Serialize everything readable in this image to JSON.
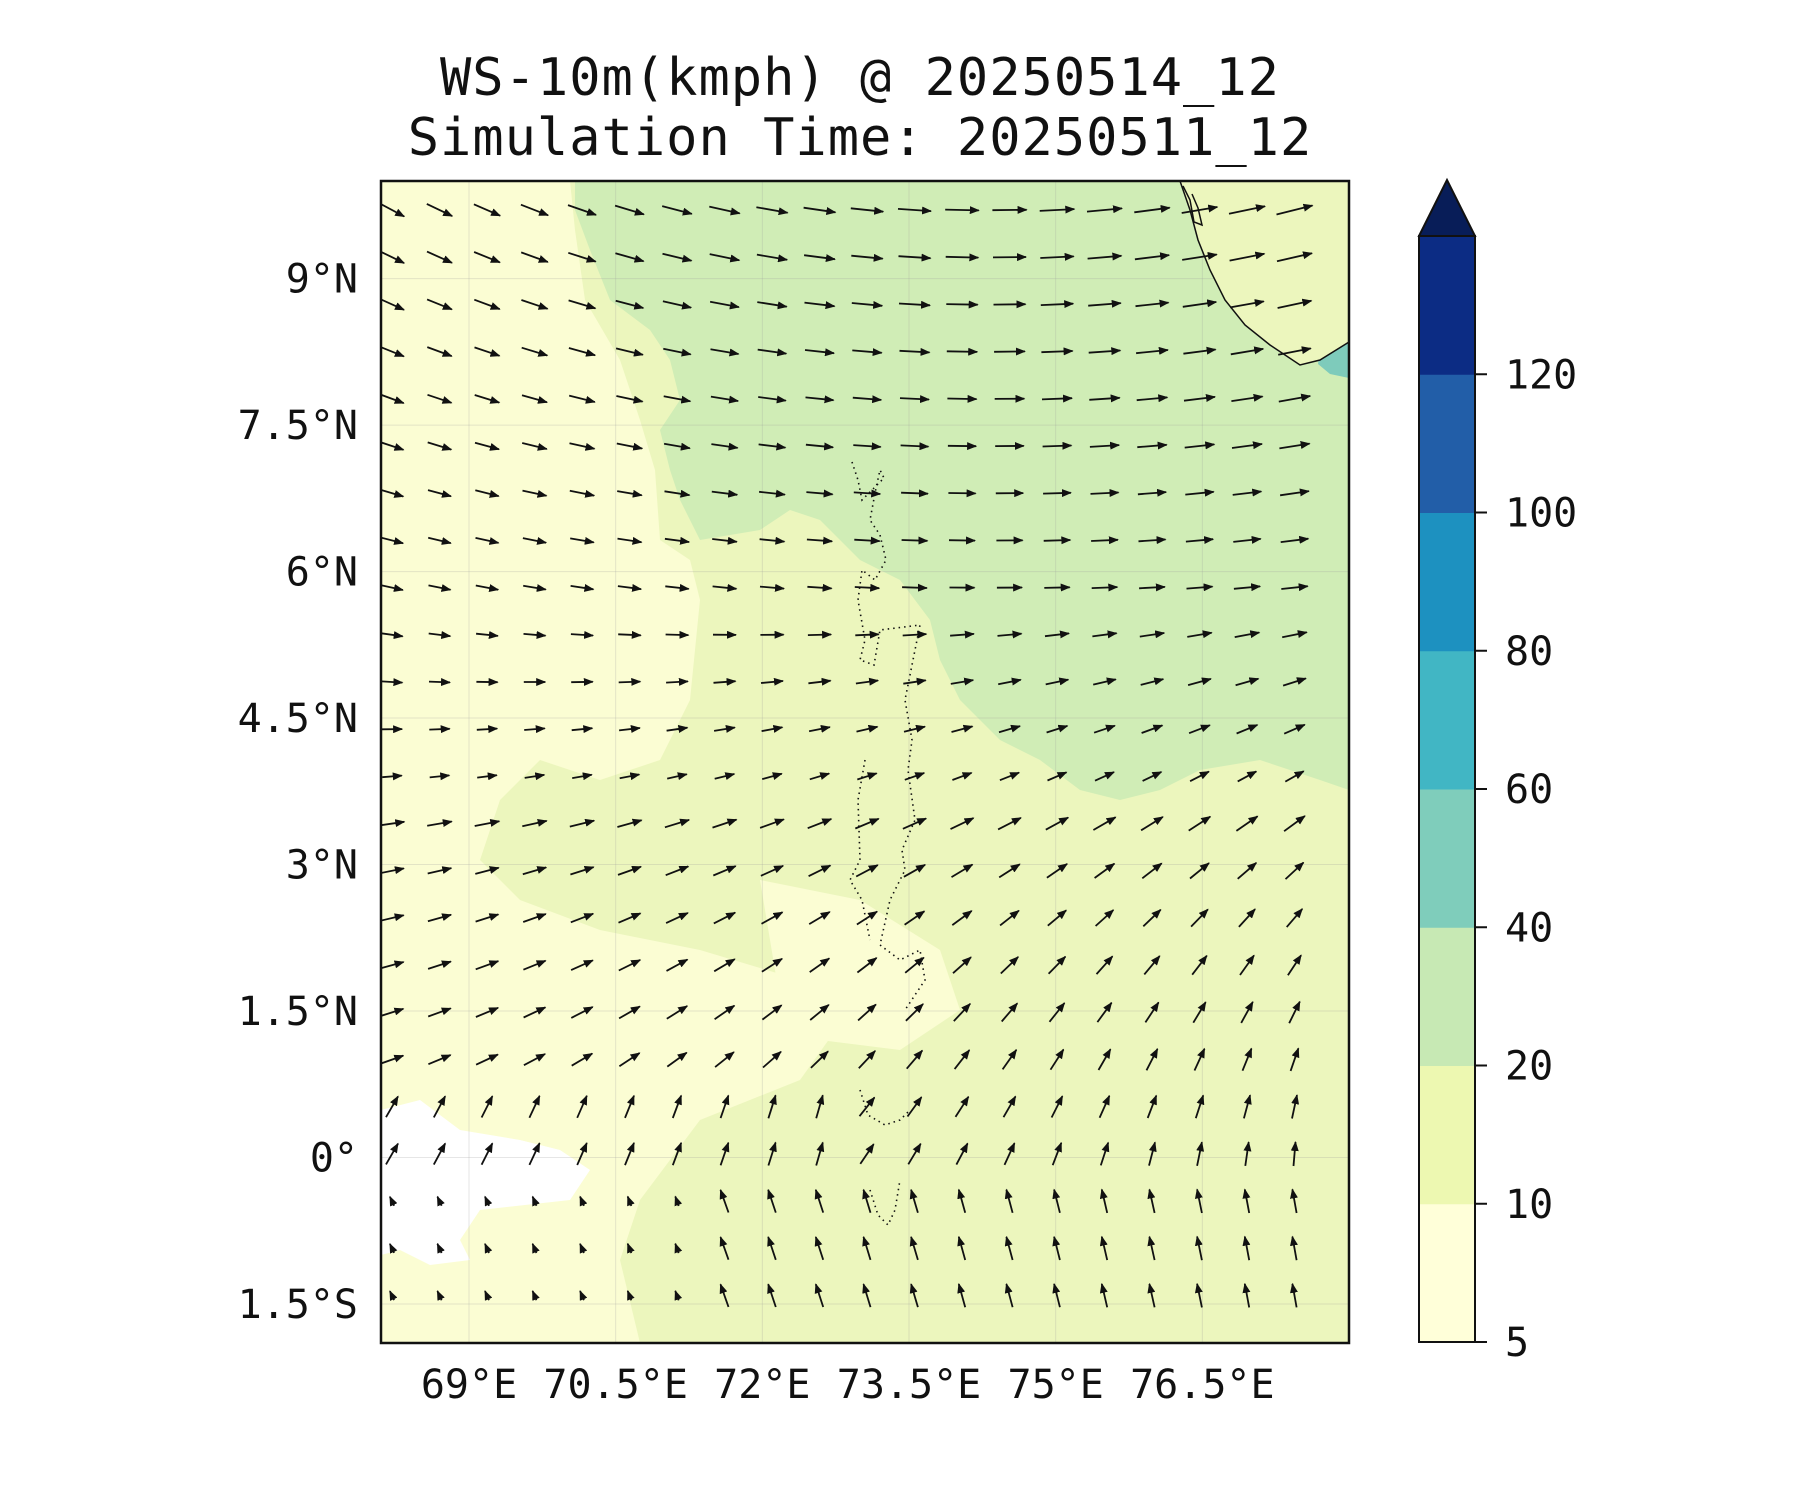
{
  "title_line1": "WS-10m(kmph) @ 20250514_12",
  "title_line2": "Simulation Time: 20250511_12",
  "map": {
    "lon_range": [
      68.1,
      78.0
    ],
    "lat_range": [
      -1.9,
      10.0
    ],
    "lon_ticks": [
      {
        "v": 69,
        "label": "69°E"
      },
      {
        "v": 70.5,
        "label": "70.5°E"
      },
      {
        "v": 72,
        "label": "72°E"
      },
      {
        "v": 73.5,
        "label": "73.5°E"
      },
      {
        "v": 75,
        "label": "75°E"
      },
      {
        "v": 76.5,
        "label": "76.5°E"
      }
    ],
    "lat_ticks": [
      {
        "v": 9,
        "label": "9°N"
      },
      {
        "v": 7.5,
        "label": "7.5°N"
      },
      {
        "v": 6,
        "label": "6°N"
      },
      {
        "v": 4.5,
        "label": "4.5°N"
      },
      {
        "v": 3,
        "label": "3°N"
      },
      {
        "v": 1.5,
        "label": "1.5°N"
      },
      {
        "v": 0,
        "label": "0°"
      },
      {
        "v": -1.5,
        "label": "1.5°S"
      }
    ],
    "gridlines": true,
    "vector_field": "10 m wind arrows: west-northwesterly in the north turning northerly/northwesterly in the south-east"
  },
  "colorbar": {
    "levels": [
      5,
      10,
      20,
      40,
      60,
      80,
      100,
      120
    ],
    "labels": [
      "5",
      "10",
      "20",
      "40",
      "60",
      "80",
      "100",
      "120"
    ],
    "colors": [
      "#ffffd9",
      "#edf8b1",
      "#c7e9b4",
      "#7fcdbb",
      "#41b6c4",
      "#1d91c0",
      "#225ea8",
      "#0c2c84"
    ],
    "extend_color": "#081d58",
    "extend": "max"
  },
  "colors": {
    "band_5_10": "#fbfdd3",
    "band_10_20": "#ecf6bd",
    "band_20_40": "#d0edb6",
    "band_40_60": "#7ecbbb",
    "below_5": "#ffffff"
  }
}
